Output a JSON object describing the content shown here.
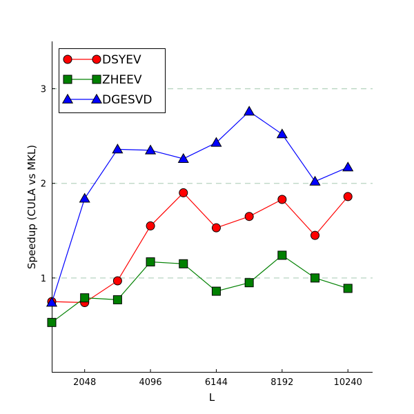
{
  "chart_data": {
    "type": "line",
    "xlabel": "L",
    "ylabel": "Speedup (CULA vs MKL)",
    "x_ticks": [
      2048,
      4096,
      6144,
      8192,
      10240
    ],
    "y_ticks": [
      1,
      2,
      3
    ],
    "xlim": [
      1024,
      11008
    ],
    "ylim": [
      0,
      3.5
    ],
    "grid": "horizontal dashed at y ticks",
    "legend_position": "top-left",
    "x": [
      1024,
      2048,
      3072,
      4096,
      5120,
      6144,
      7168,
      8192,
      9216,
      10240
    ],
    "series": [
      {
        "name": "DSYEV",
        "color": "#ff0000",
        "marker": "circle",
        "values": [
          0.75,
          0.74,
          0.97,
          1.55,
          1.9,
          1.53,
          1.65,
          1.83,
          1.45,
          1.86
        ]
      },
      {
        "name": "ZHEEV",
        "color": "#008000",
        "marker": "square",
        "values": [
          0.53,
          0.79,
          0.77,
          1.17,
          1.15,
          0.86,
          0.95,
          1.24,
          1.0,
          0.89
        ]
      },
      {
        "name": "DGESVD",
        "color": "#0000ff",
        "marker": "triangle",
        "values": [
          0.74,
          1.84,
          2.36,
          2.35,
          2.26,
          2.43,
          2.76,
          2.52,
          2.02,
          2.17
        ]
      }
    ]
  }
}
